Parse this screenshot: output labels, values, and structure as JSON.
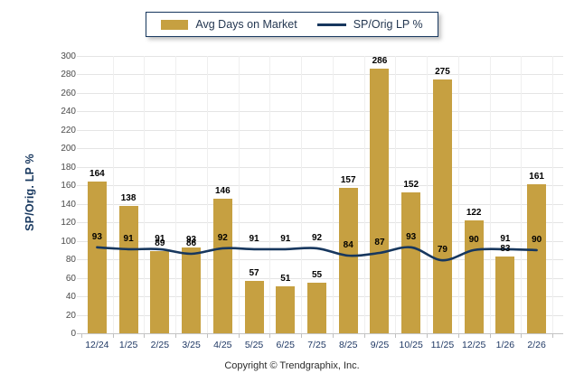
{
  "legend": {
    "bar_label": "Avg Days on Market",
    "line_label": "SP/Orig LP %"
  },
  "y_axis": {
    "title": "SP/Orig. LP %",
    "ticks": [
      0,
      20,
      40,
      60,
      80,
      100,
      120,
      140,
      160,
      180,
      200,
      220,
      240,
      260,
      280,
      300
    ]
  },
  "footer": {
    "copyright": "Copyright © Trendgraphix, Inc."
  },
  "colors": {
    "bar": "#C6A041",
    "line": "#17375E",
    "grid": "#E4E4E4",
    "x_label": "#1F3864",
    "y_label": "#4A4A4A",
    "value_label": "#000000",
    "legend_border": "#17375E"
  },
  "chart_data": {
    "type": "bar",
    "subtype": "bar-line combo",
    "title": "",
    "xlabel": "",
    "ylabel": "SP/Orig. LP %",
    "categories": [
      "12/24",
      "1/25",
      "2/25",
      "3/25",
      "4/25",
      "5/25",
      "6/25",
      "7/25",
      "8/25",
      "9/25",
      "10/25",
      "11/25",
      "12/25",
      "1/26",
      "2/26"
    ],
    "series": [
      {
        "name": "Avg Days on Market",
        "type": "bar",
        "values": [
          164,
          138,
          89,
          93,
          146,
          57,
          51,
          55,
          157,
          286,
          152,
          275,
          122,
          83,
          161
        ]
      },
      {
        "name": "SP/Orig LP %",
        "type": "line",
        "values": [
          93,
          91,
          91,
          86,
          92,
          91,
          91,
          92,
          84,
          87,
          93,
          79,
          90,
          91,
          90
        ]
      }
    ],
    "ylim": [
      0,
      300
    ],
    "ytick_step": 20,
    "grid": "horizontal",
    "legend_position": "top-center",
    "value_labels": "shown above bars and above line points"
  }
}
